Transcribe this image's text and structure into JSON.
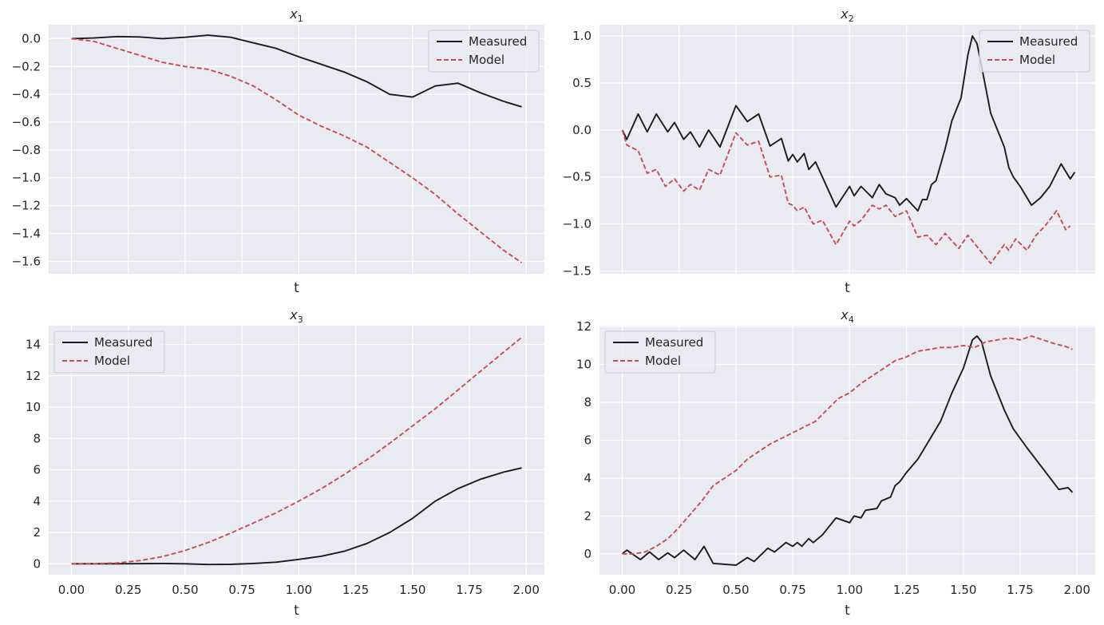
{
  "figure": {
    "xlabel": "t"
  },
  "legend": {
    "measured": "Measured",
    "model": "Model"
  },
  "colors": {
    "measured": "#1a1a1a",
    "model": "#c44e52",
    "background": "#eaeaf2"
  },
  "chart_data": [
    {
      "type": "line",
      "title_var": "x",
      "title_sub": "1",
      "xlabel": "t",
      "xlim": [
        -0.1,
        2.08
      ],
      "ylim": [
        -1.69,
        0.1
      ],
      "xticks": [],
      "yticks": [
        0.0,
        -0.2,
        -0.4,
        -0.6,
        -0.8,
        -1.0,
        -1.2,
        -1.4,
        -1.6
      ],
      "ytick_labels": [
        "0.0",
        "−0.2",
        "−0.4",
        "−0.6",
        "−0.8",
        "−1.0",
        "−1.2",
        "−1.4",
        "−1.6"
      ],
      "series": [
        {
          "name": "Measured",
          "x": [
            0,
            0.1,
            0.2,
            0.3,
            0.4,
            0.5,
            0.6,
            0.7,
            0.8,
            0.9,
            1.0,
            1.1,
            1.2,
            1.3,
            1.4,
            1.5,
            1.6,
            1.7,
            1.8,
            1.9,
            1.98
          ],
          "y": [
            0.0,
            0.005,
            0.015,
            0.012,
            0.0,
            0.01,
            0.025,
            0.01,
            -0.03,
            -0.07,
            -0.13,
            -0.185,
            -0.24,
            -0.31,
            -0.4,
            -0.42,
            -0.34,
            -0.32,
            -0.39,
            -0.45,
            -0.49
          ]
        },
        {
          "name": "Model",
          "x": [
            0,
            0.1,
            0.2,
            0.3,
            0.4,
            0.5,
            0.6,
            0.7,
            0.8,
            0.9,
            1.0,
            1.1,
            1.2,
            1.3,
            1.4,
            1.5,
            1.6,
            1.7,
            1.8,
            1.9,
            1.98
          ],
          "y": [
            0.0,
            -0.02,
            -0.07,
            -0.12,
            -0.17,
            -0.2,
            -0.22,
            -0.27,
            -0.34,
            -0.44,
            -0.55,
            -0.63,
            -0.7,
            -0.78,
            -0.89,
            -1.0,
            -1.12,
            -1.26,
            -1.39,
            -1.52,
            -1.61
          ]
        }
      ]
    },
    {
      "type": "line",
      "title_var": "x",
      "title_sub": "2",
      "xlabel": "t",
      "xlim": [
        -0.1,
        2.08
      ],
      "ylim": [
        -1.53,
        1.12
      ],
      "xticks": [],
      "yticks": [
        1.0,
        0.5,
        0.0,
        -0.5,
        -1.0,
        -1.5
      ],
      "ytick_labels": [
        "1.0",
        "0.5",
        "0.0",
        "−0.5",
        "−1.0",
        "−1.5"
      ],
      "series": [
        {
          "name": "Measured",
          "x": [
            0,
            0.02,
            0.07,
            0.11,
            0.15,
            0.2,
            0.23,
            0.27,
            0.3,
            0.34,
            0.38,
            0.43,
            0.5,
            0.55,
            0.6,
            0.65,
            0.7,
            0.73,
            0.75,
            0.77,
            0.8,
            0.82,
            0.85,
            0.88,
            0.94,
            1.0,
            1.02,
            1.05,
            1.1,
            1.13,
            1.16,
            1.2,
            1.22,
            1.25,
            1.3,
            1.32,
            1.34,
            1.36,
            1.38,
            1.42,
            1.45,
            1.49,
            1.52,
            1.54,
            1.56,
            1.58,
            1.62,
            1.68,
            1.7,
            1.72,
            1.75,
            1.8,
            1.84,
            1.88,
            1.93,
            1.97,
            1.99
          ],
          "y": [
            0.0,
            -0.1,
            0.17,
            -0.02,
            0.17,
            -0.02,
            0.08,
            -0.1,
            -0.02,
            -0.18,
            0.0,
            -0.18,
            0.26,
            0.09,
            0.17,
            -0.17,
            -0.09,
            -0.33,
            -0.26,
            -0.34,
            -0.25,
            -0.42,
            -0.34,
            -0.5,
            -0.82,
            -0.6,
            -0.7,
            -0.6,
            -0.72,
            -0.58,
            -0.68,
            -0.72,
            -0.8,
            -0.73,
            -0.86,
            -0.74,
            -0.74,
            -0.58,
            -0.54,
            -0.2,
            0.1,
            0.34,
            0.8,
            1.0,
            0.92,
            0.68,
            0.18,
            -0.18,
            -0.4,
            -0.5,
            -0.6,
            -0.8,
            -0.72,
            -0.6,
            -0.36,
            -0.52,
            -0.45
          ]
        },
        {
          "name": "Model",
          "x": [
            0,
            0.02,
            0.07,
            0.11,
            0.15,
            0.19,
            0.23,
            0.27,
            0.3,
            0.34,
            0.38,
            0.43,
            0.5,
            0.55,
            0.6,
            0.65,
            0.7,
            0.73,
            0.75,
            0.77,
            0.8,
            0.84,
            0.88,
            0.94,
            1.0,
            1.02,
            1.05,
            1.1,
            1.13,
            1.16,
            1.2,
            1.25,
            1.3,
            1.34,
            1.38,
            1.42,
            1.48,
            1.52,
            1.56,
            1.62,
            1.68,
            1.7,
            1.73,
            1.78,
            1.82,
            1.86,
            1.91,
            1.95,
            1.97
          ],
          "y": [
            0.0,
            -0.16,
            -0.22,
            -0.46,
            -0.42,
            -0.6,
            -0.52,
            -0.65,
            -0.58,
            -0.64,
            -0.42,
            -0.48,
            -0.03,
            -0.16,
            -0.12,
            -0.5,
            -0.48,
            -0.78,
            -0.8,
            -0.86,
            -0.82,
            -1.0,
            -0.96,
            -1.22,
            -0.97,
            -1.02,
            -0.96,
            -0.8,
            -0.84,
            -0.8,
            -0.92,
            -0.86,
            -1.14,
            -1.12,
            -1.22,
            -1.1,
            -1.26,
            -1.12,
            -1.24,
            -1.42,
            -1.22,
            -1.28,
            -1.16,
            -1.28,
            -1.12,
            -1.02,
            -0.86,
            -1.06,
            -1.02
          ]
        }
      ]
    },
    {
      "type": "line",
      "title_var": "x",
      "title_sub": "3",
      "xlabel": "t",
      "xlim": [
        -0.1,
        2.08
      ],
      "ylim": [
        -0.7,
        15.2
      ],
      "xticks": [
        0.0,
        0.25,
        0.5,
        0.75,
        1.0,
        1.25,
        1.5,
        1.75,
        2.0
      ],
      "xtick_labels": [
        "0.00",
        "0.25",
        "0.50",
        "0.75",
        "1.00",
        "1.25",
        "1.50",
        "1.75",
        "2.00"
      ],
      "yticks": [
        14,
        12,
        10,
        8,
        6,
        4,
        2,
        0
      ],
      "ytick_labels": [
        "14",
        "12",
        "10",
        "8",
        "6",
        "4",
        "2",
        "0"
      ],
      "series": [
        {
          "name": "Measured",
          "x": [
            0,
            0.2,
            0.4,
            0.5,
            0.6,
            0.7,
            0.8,
            0.9,
            1.0,
            1.1,
            1.2,
            1.3,
            1.4,
            1.5,
            1.6,
            1.7,
            1.8,
            1.9,
            1.98
          ],
          "y": [
            0.0,
            0.0,
            0.02,
            0.0,
            -0.05,
            -0.04,
            0.02,
            0.1,
            0.28,
            0.48,
            0.8,
            1.3,
            2.0,
            2.9,
            4.0,
            4.8,
            5.4,
            5.85,
            6.12
          ]
        },
        {
          "name": "Model",
          "x": [
            0,
            0.1,
            0.2,
            0.3,
            0.4,
            0.5,
            0.6,
            0.7,
            0.8,
            0.9,
            1.0,
            1.1,
            1.2,
            1.3,
            1.4,
            1.5,
            1.6,
            1.7,
            1.8,
            1.9,
            1.98
          ],
          "y": [
            0.0,
            0.0,
            0.05,
            0.2,
            0.45,
            0.85,
            1.35,
            1.95,
            2.6,
            3.25,
            4.0,
            4.8,
            5.7,
            6.65,
            7.7,
            8.8,
            9.9,
            11.1,
            12.3,
            13.5,
            14.45
          ]
        }
      ]
    },
    {
      "type": "line",
      "title_var": "x",
      "title_sub": "4",
      "xlabel": "t",
      "xlim": [
        -0.1,
        2.08
      ],
      "ylim": [
        -1.1,
        12.05
      ],
      "xticks": [
        0.0,
        0.25,
        0.5,
        0.75,
        1.0,
        1.25,
        1.5,
        1.75,
        2.0
      ],
      "xtick_labels": [
        "0.00",
        "0.25",
        "0.50",
        "0.75",
        "1.00",
        "1.25",
        "1.50",
        "1.75",
        "2.00"
      ],
      "yticks": [
        12,
        10,
        8,
        6,
        4,
        2,
        0
      ],
      "ytick_labels": [
        "12",
        "10",
        "8",
        "6",
        "4",
        "2",
        "0"
      ],
      "series": [
        {
          "name": "Measured",
          "x": [
            0,
            0.02,
            0.08,
            0.12,
            0.16,
            0.2,
            0.23,
            0.27,
            0.32,
            0.36,
            0.4,
            0.5,
            0.55,
            0.58,
            0.64,
            0.67,
            0.72,
            0.75,
            0.77,
            0.79,
            0.82,
            0.84,
            0.88,
            0.94,
            1.0,
            1.02,
            1.05,
            1.07,
            1.12,
            1.14,
            1.18,
            1.2,
            1.22,
            1.25,
            1.3,
            1.35,
            1.4,
            1.45,
            1.5,
            1.54,
            1.56,
            1.58,
            1.62,
            1.68,
            1.72,
            1.78,
            1.85,
            1.92,
            1.96,
            1.98
          ],
          "y": [
            0.0,
            0.2,
            -0.3,
            0.1,
            -0.3,
            0.05,
            -0.2,
            0.2,
            -0.3,
            0.4,
            -0.5,
            -0.6,
            -0.2,
            -0.4,
            0.3,
            0.1,
            0.6,
            0.4,
            0.6,
            0.4,
            0.8,
            0.6,
            1.0,
            1.9,
            1.65,
            2.0,
            1.9,
            2.3,
            2.4,
            2.8,
            3.0,
            3.6,
            3.8,
            4.3,
            5.0,
            6.0,
            7.0,
            8.5,
            9.8,
            11.3,
            11.5,
            11.2,
            9.4,
            7.6,
            6.6,
            5.6,
            4.5,
            3.4,
            3.5,
            3.25
          ]
        },
        {
          "name": "Model",
          "x": [
            0,
            0.05,
            0.1,
            0.15,
            0.2,
            0.25,
            0.3,
            0.35,
            0.4,
            0.45,
            0.5,
            0.55,
            0.6,
            0.65,
            0.7,
            0.75,
            0.8,
            0.85,
            0.9,
            0.95,
            1.0,
            1.05,
            1.1,
            1.15,
            1.2,
            1.25,
            1.3,
            1.35,
            1.4,
            1.45,
            1.5,
            1.55,
            1.6,
            1.65,
            1.7,
            1.75,
            1.8,
            1.85,
            1.9,
            1.95,
            1.98
          ],
          "y": [
            0.0,
            0.0,
            0.1,
            0.4,
            0.8,
            1.4,
            2.1,
            2.8,
            3.6,
            4.0,
            4.4,
            5.0,
            5.4,
            5.8,
            6.1,
            6.4,
            6.7,
            7.0,
            7.6,
            8.2,
            8.5,
            9.0,
            9.4,
            9.8,
            10.2,
            10.4,
            10.7,
            10.8,
            10.9,
            10.9,
            11.0,
            10.9,
            11.2,
            11.3,
            11.4,
            11.3,
            11.5,
            11.3,
            11.1,
            10.95,
            10.8
          ]
        }
      ]
    }
  ]
}
